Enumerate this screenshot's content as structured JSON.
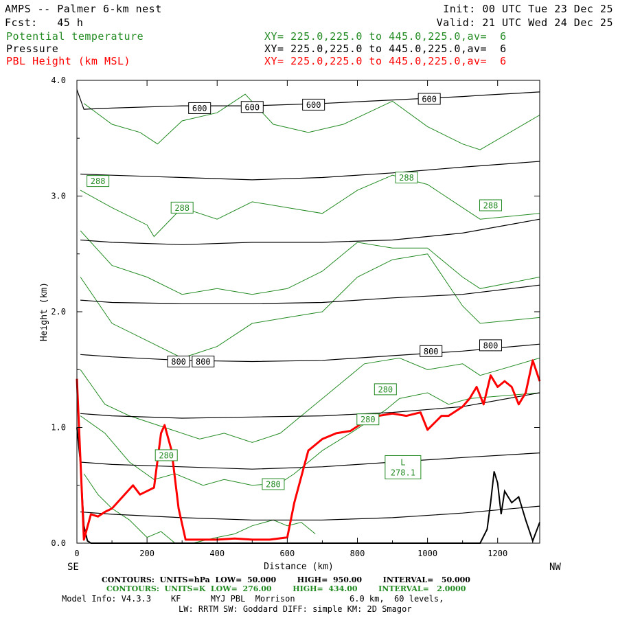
{
  "header": {
    "model": "AMPS -- Palmer 6-km nest",
    "forecast": "Fcst:   45 h",
    "init": "Init: 00 UTC Tue 23 Dec 25",
    "valid": "Valid: 21 UTC Wed 24 Dec 25",
    "fields": [
      {
        "name": "Potential temperature",
        "xy": "XY= 225.0,225.0 to 445.0,225.0,av=  6",
        "color": "#228b22"
      },
      {
        "name": "Pressure",
        "xy": "XY= 225.0,225.0 to 445.0,225.0,av=  6",
        "color": "#000000"
      },
      {
        "name": "PBL Height (km MSL)",
        "xy": "XY= 225.0,225.0 to 445.0,225.0,av=  6",
        "color": "#ff0000"
      }
    ]
  },
  "footer": {
    "pressure_contours": "CONTOURS:  UNITS=hPa  LOW=  50.000        HIGH=  950.00        INTERVAL=   50.000",
    "theta_contours": "CONTOURS:  UNITS=K  LOW=  276.00        HIGH=  434.00        INTERVAL=   2.0000",
    "model_info": "Model Info: V4.3.3    KF      MYJ PBL  Morrison           6.0 km,  60 levels,",
    "physics": "LW: RRTM SW: Goddard DIFF: simple KM: 2D Smagor"
  },
  "chart_data": {
    "type": "line",
    "xlabel": "Distance (km)",
    "ylabel": "Height (km)",
    "xlim": [
      0,
      1320
    ],
    "ylim": [
      0,
      4
    ],
    "x_ticks": [
      0,
      200,
      400,
      600,
      800,
      1000,
      1200
    ],
    "x_tick_labels": [
      "0",
      "200",
      "400",
      "600",
      "800",
      "1000",
      "1200"
    ],
    "y_ticks": [
      0,
      1,
      2,
      3,
      4
    ],
    "y_tick_labels": [
      "0.0",
      "1.0",
      "2.0",
      "3.0",
      "4.0"
    ],
    "x_end_labels": {
      "left": "SE",
      "right": "NW"
    },
    "pressure_contours": [
      {
        "level": 600,
        "color": "#000000",
        "x": [
          0,
          20,
          100,
          300,
          500,
          700,
          900,
          1100,
          1150,
          1320
        ],
        "y": [
          3.92,
          3.75,
          3.76,
          3.78,
          3.78,
          3.8,
          3.83,
          3.86,
          3.87,
          3.9
        ],
        "labels": [
          {
            "x": 350,
            "y": 3.76
          },
          {
            "x": 500,
            "y": 3.77
          },
          {
            "x": 675,
            "y": 3.79
          },
          {
            "x": 1005,
            "y": 3.84
          }
        ]
      },
      {
        "level": 650,
        "color": "#000000",
        "x": [
          10,
          100,
          300,
          500,
          700,
          900,
          1100,
          1320
        ],
        "y": [
          3.19,
          3.18,
          3.16,
          3.14,
          3.16,
          3.2,
          3.25,
          3.3
        ],
        "labels": []
      },
      {
        "level": 700,
        "color": "#000000",
        "x": [
          10,
          100,
          300,
          500,
          700,
          900,
          1100,
          1320
        ],
        "y": [
          2.62,
          2.6,
          2.58,
          2.6,
          2.6,
          2.62,
          2.68,
          2.8
        ],
        "labels": []
      },
      {
        "level": 750,
        "color": "#000000",
        "x": [
          10,
          100,
          300,
          500,
          700,
          900,
          1100,
          1320
        ],
        "y": [
          2.1,
          2.08,
          2.07,
          2.07,
          2.08,
          2.12,
          2.15,
          2.23
        ],
        "labels": []
      },
      {
        "level": 800,
        "color": "#000000",
        "x": [
          10,
          100,
          300,
          500,
          700,
          900,
          1100,
          1320
        ],
        "y": [
          1.63,
          1.61,
          1.58,
          1.57,
          1.58,
          1.62,
          1.66,
          1.72
        ],
        "labels": [
          {
            "x": 290,
            "y": 1.57
          },
          {
            "x": 360,
            "y": 1.57
          },
          {
            "x": 1010,
            "y": 1.66
          },
          {
            "x": 1180,
            "y": 1.71
          }
        ]
      },
      {
        "level": 850,
        "color": "#000000",
        "x": [
          10,
          100,
          300,
          500,
          700,
          900,
          1100,
          1320
        ],
        "y": [
          1.12,
          1.1,
          1.08,
          1.09,
          1.1,
          1.13,
          1.18,
          1.3
        ],
        "labels": []
      },
      {
        "level": 900,
        "color": "#000000",
        "x": [
          10,
          100,
          300,
          500,
          700,
          900,
          1100,
          1320
        ],
        "y": [
          0.7,
          0.68,
          0.66,
          0.64,
          0.66,
          0.7,
          0.74,
          0.78
        ],
        "labels": []
      },
      {
        "level": 950,
        "color": "#000000",
        "x": [
          10,
          100,
          300,
          500,
          700,
          900,
          1100,
          1320
        ],
        "y": [
          0.27,
          0.25,
          0.22,
          0.2,
          0.2,
          0.22,
          0.26,
          0.32
        ],
        "labels": []
      }
    ],
    "theta_contours": [
      {
        "color": "#228b22",
        "x": [
          20,
          100,
          180,
          230,
          300,
          400,
          480,
          560,
          660,
          760,
          900,
          1000,
          1100,
          1150,
          1320
        ],
        "y": [
          3.8,
          3.62,
          3.55,
          3.45,
          3.65,
          3.72,
          3.88,
          3.62,
          3.55,
          3.62,
          3.82,
          3.6,
          3.45,
          3.4,
          3.7
        ]
      },
      {
        "color": "#228b22",
        "x": [
          10,
          100,
          200,
          220,
          300,
          400,
          500,
          600,
          700,
          800,
          900,
          1000,
          1100,
          1150,
          1320
        ],
        "y": [
          3.05,
          2.9,
          2.75,
          2.65,
          2.9,
          2.8,
          2.95,
          2.9,
          2.85,
          3.05,
          3.18,
          3.1,
          2.9,
          2.8,
          2.85
        ]
      },
      {
        "color": "#228b22",
        "x": [
          10,
          100,
          200,
          300,
          400,
          500,
          600,
          700,
          800,
          900,
          1000,
          1100,
          1150,
          1320
        ],
        "y": [
          2.7,
          2.4,
          2.3,
          2.15,
          2.2,
          2.15,
          2.2,
          2.35,
          2.6,
          2.55,
          2.55,
          2.3,
          2.2,
          2.3
        ]
      },
      {
        "color": "#228b22",
        "x": [
          10,
          100,
          200,
          300,
          400,
          500,
          600,
          700,
          800,
          900,
          1000,
          1100,
          1150,
          1320
        ],
        "y": [
          2.3,
          1.9,
          1.75,
          1.6,
          1.7,
          1.9,
          1.95,
          2.0,
          2.3,
          2.45,
          2.5,
          2.05,
          1.9,
          1.95
        ]
      },
      {
        "color": "#228b22",
        "x": [
          10,
          80,
          150,
          250,
          350,
          420,
          500,
          580,
          640,
          720,
          820,
          920,
          1000,
          1100,
          1150,
          1320
        ],
        "y": [
          1.5,
          1.2,
          1.1,
          1.0,
          0.9,
          0.95,
          0.87,
          0.95,
          1.1,
          1.3,
          1.55,
          1.6,
          1.5,
          1.55,
          1.45,
          1.6
        ]
      },
      {
        "color": "#228b22",
        "x": [
          10,
          80,
          150,
          220,
          280,
          360,
          420,
          500,
          580,
          620,
          700,
          780,
          880,
          920,
          1000,
          1060,
          1120,
          1320
        ],
        "y": [
          1.1,
          0.95,
          0.7,
          0.55,
          0.6,
          0.5,
          0.55,
          0.5,
          0.52,
          0.6,
          0.8,
          0.95,
          1.15,
          1.25,
          1.3,
          1.2,
          1.25,
          1.3
        ]
      },
      {
        "color": "#228b22",
        "x": [
          20,
          60,
          100,
          150,
          200,
          240,
          280,
          300,
          330,
          400,
          450,
          500,
          560,
          600,
          640,
          680
        ],
        "y": [
          0.6,
          0.42,
          0.3,
          0.2,
          0.05,
          0.1,
          0.0,
          0.0,
          0.0,
          0.05,
          0.08,
          0.15,
          0.2,
          0.15,
          0.18,
          0.08
        ]
      }
    ],
    "theta_labels": [
      {
        "text": "288",
        "x": 60,
        "y": 3.13
      },
      {
        "text": "288",
        "x": 300,
        "y": 2.9
      },
      {
        "text": "288",
        "x": 940,
        "y": 3.16
      },
      {
        "text": "288",
        "x": 1180,
        "y": 2.92
      },
      {
        "text": "280",
        "x": 255,
        "y": 0.76
      },
      {
        "text": "280",
        "x": 560,
        "y": 0.51
      },
      {
        "text": "280",
        "x": 830,
        "y": 1.07
      },
      {
        "text": "280",
        "x": 880,
        "y": 1.33
      }
    ],
    "theta_minimum": {
      "mark": "L",
      "value": "278.1",
      "x": 930,
      "y": 0.65
    },
    "pbl_height": {
      "name": "PBL Height (km MSL)",
      "color": "#ff0000",
      "x": [
        0,
        20,
        40,
        60,
        80,
        100,
        130,
        160,
        180,
        200,
        220,
        240,
        250,
        270,
        290,
        310,
        350,
        400,
        450,
        500,
        550,
        600,
        620,
        660,
        700,
        740,
        780,
        820,
        860,
        900,
        940,
        980,
        1000,
        1040,
        1060,
        1100,
        1120,
        1140,
        1160,
        1180,
        1200,
        1220,
        1240,
        1260,
        1280,
        1300,
        1320
      ],
      "y": [
        1.42,
        0.03,
        0.25,
        0.23,
        0.27,
        0.3,
        0.4,
        0.5,
        0.42,
        0.45,
        0.48,
        0.95,
        1.02,
        0.8,
        0.3,
        0.03,
        0.03,
        0.03,
        0.04,
        0.03,
        0.03,
        0.05,
        0.35,
        0.8,
        0.9,
        0.95,
        0.97,
        1.05,
        1.1,
        1.12,
        1.1,
        1.13,
        0.98,
        1.1,
        1.1,
        1.18,
        1.25,
        1.35,
        1.2,
        1.45,
        1.35,
        1.4,
        1.35,
        1.2,
        1.3,
        1.58,
        1.4
      ]
    },
    "terrain": {
      "color": "#000000",
      "x": [
        0,
        10,
        20,
        30,
        40,
        60,
        80,
        100,
        1150,
        1170,
        1180,
        1190,
        1200,
        1210,
        1220,
        1240,
        1260,
        1280,
        1300,
        1320
      ],
      "y": [
        1.0,
        0.7,
        0.15,
        0.02,
        0.0,
        0.0,
        0.0,
        0.0,
        0.0,
        0.12,
        0.35,
        0.62,
        0.52,
        0.25,
        0.45,
        0.35,
        0.4,
        0.2,
        0.02,
        0.18
      ]
    }
  }
}
